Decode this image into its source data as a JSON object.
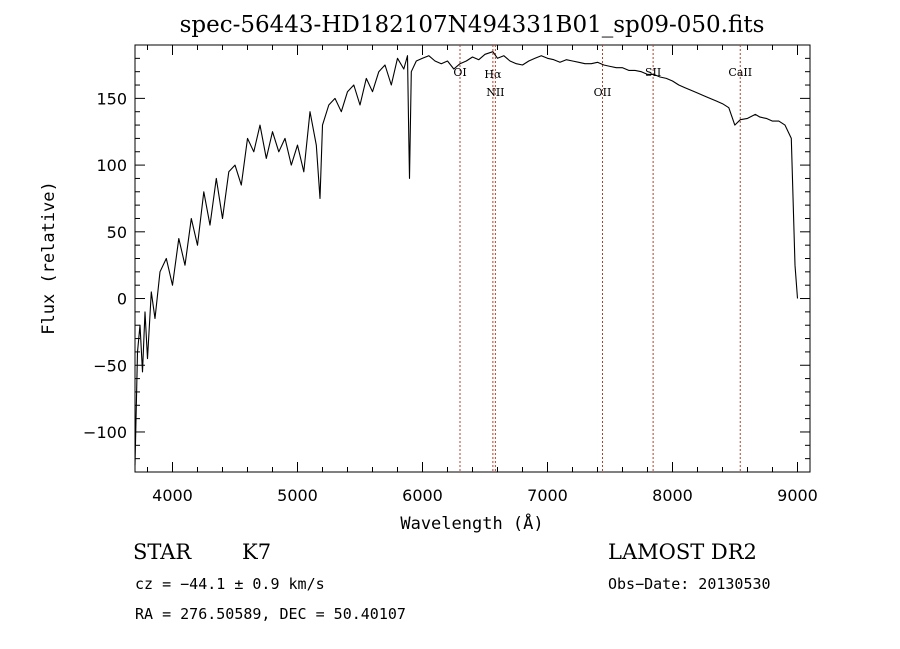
{
  "chart_data": {
    "type": "line",
    "title": "spec-56443-HD182107N494331B01_sp09-050.fits",
    "xlabel": "Wavelength (Å)",
    "ylabel": "Flux (relative)",
    "xlim": [
      3700,
      9100
    ],
    "ylim": [
      -130,
      190
    ],
    "x_ticks": [
      4000,
      5000,
      6000,
      7000,
      8000,
      9000
    ],
    "x_tick_labels": [
      "4000",
      "5000",
      "6000",
      "7000",
      "8000",
      "9000"
    ],
    "y_ticks": [
      -100,
      -50,
      0,
      50,
      100,
      150
    ],
    "y_tick_labels": [
      "−100",
      "−50",
      "0",
      "50",
      "100",
      "150"
    ],
    "series": [
      {
        "x": [
          3700,
          3720,
          3740,
          3760,
          3780,
          3800,
          3830,
          3860,
          3900,
          3950,
          4000,
          4050,
          4100,
          4150,
          4200,
          4250,
          4300,
          4350,
          4400,
          4450,
          4500,
          4550,
          4600,
          4650,
          4700,
          4750,
          4800,
          4850,
          4900,
          4950,
          5000,
          5050,
          5100,
          5150,
          5180,
          5200,
          5250,
          5300,
          5350,
          5400,
          5450,
          5500,
          5550,
          5600,
          5650,
          5700,
          5750,
          5800,
          5850,
          5880,
          5890,
          5896,
          5910,
          5950,
          6000,
          6050,
          6100,
          6150,
          6200,
          6250,
          6300,
          6350,
          6400,
          6450,
          6500,
          6563,
          6600,
          6650,
          6700,
          6750,
          6800,
          6850,
          6900,
          6950,
          7000,
          7050,
          7100,
          7150,
          7200,
          7250,
          7300,
          7350,
          7400,
          7450,
          7500,
          7550,
          7600,
          7650,
          7700,
          7750,
          7800,
          7850,
          7900,
          7950,
          8000,
          8050,
          8100,
          8150,
          8200,
          8250,
          8300,
          8350,
          8400,
          8450,
          8498,
          8542,
          8600,
          8662,
          8700,
          8750,
          8800,
          8850,
          8900,
          8950,
          8980,
          9000
        ],
        "y": [
          -125,
          -40,
          -20,
          -55,
          -10,
          -45,
          5,
          -15,
          20,
          30,
          10,
          45,
          25,
          60,
          40,
          80,
          55,
          90,
          60,
          95,
          100,
          85,
          120,
          110,
          130,
          105,
          125,
          110,
          120,
          100,
          115,
          95,
          140,
          115,
          75,
          130,
          145,
          150,
          140,
          155,
          160,
          145,
          165,
          155,
          170,
          175,
          160,
          180,
          172,
          182,
          120,
          90,
          170,
          178,
          180,
          182,
          178,
          176,
          178,
          172,
          176,
          178,
          181,
          179,
          183,
          185,
          180,
          182,
          178,
          176,
          175,
          178,
          180,
          182,
          180,
          179,
          177,
          179,
          178,
          177,
          176,
          176,
          177,
          175,
          174,
          173,
          173,
          171,
          171,
          170,
          168,
          168,
          166,
          165,
          163,
          160,
          158,
          156,
          154,
          152,
          150,
          148,
          146,
          143,
          130,
          134,
          135,
          138,
          136,
          135,
          133,
          133,
          130,
          120,
          25,
          0
        ]
      }
    ],
    "lines": [
      {
        "label": "OI",
        "x": 6300
      },
      {
        "label": "Hα",
        "x": 6563
      },
      {
        "label": "NII",
        "x": 6583
      },
      {
        "label": "OII",
        "x": 7440
      },
      {
        "label": "SII",
        "x": 7845
      },
      {
        "label": "CaII",
        "x": 8542
      }
    ],
    "grid": false,
    "line_color": "#000000",
    "marker_line_color": "#b04030"
  },
  "info": {
    "object_type": "STAR",
    "subclass": "K7",
    "survey": "LAMOST DR2",
    "cz": "cz = −44.1 ± 0.9 km/s",
    "obs_date": "Obs−Date: 20130530",
    "coords": "RA = 276.50589, DEC =  50.40107"
  }
}
